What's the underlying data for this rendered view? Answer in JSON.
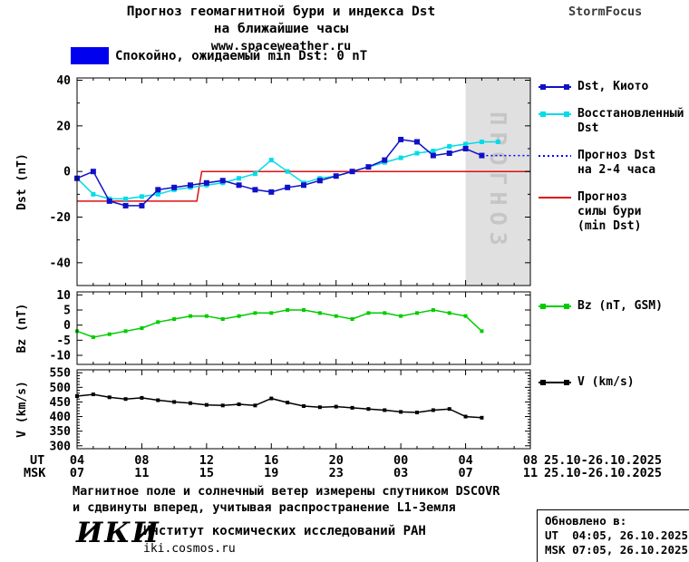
{
  "header": {
    "title_line1": "Прогноз геомагнитной бури и индекса Dst",
    "title_line2": "на ближайшие часы",
    "url": "www.spaceweather.ru",
    "brand": "StormFocus"
  },
  "status_legend": {
    "label": "Спокойно, ожидаемый min Dst: 0 nT"
  },
  "x_axis_footer": {
    "ut_label": "UT",
    "msk_label": "MSK",
    "ut_date": "25.10-26.10.2025",
    "msk_date": "25.10-26.10.2025"
  },
  "footer": {
    "note_line1": "Магнитное поле и солнечный ветер измерены спутником DSCOVR",
    "note_line2": "и сдвинуты вперед, учитывая распространение L1-Земля",
    "logo": "ИКИ",
    "institute": "Институт космических исследований РАН",
    "site": "iki.cosmos.ru",
    "updated_title": "Обновлено в:",
    "updated_ut": "UT  04:05, 26.10.2025",
    "updated_msk": "MSK 07:05, 26.10.2025"
  },
  "chart_data": {
    "type": "line",
    "title": "Прогноз геомагнитной бури и индекса Dst на ближайшие часы",
    "colors": {
      "quiet": "#0000ee",
      "forecast_region": "#e0e0e0",
      "forecast_label": "#c6c6c6",
      "axis": "#000000"
    },
    "x_axis": {
      "lim": [
        4,
        32
      ],
      "minor_step": 1,
      "major_ticks": [
        4,
        8,
        12,
        16,
        20,
        24,
        28,
        32
      ],
      "ut_labels": [
        "04",
        "08",
        "12",
        "16",
        "20",
        "00",
        "04",
        "08"
      ],
      "msk_labels": [
        "07",
        "11",
        "15",
        "19",
        "23",
        "03",
        "07",
        "11"
      ]
    },
    "panels": [
      {
        "id": "dst",
        "ylabel": "Dst (nT)",
        "ylim": [
          -50,
          41
        ],
        "yticks": [
          -40,
          -20,
          0,
          20,
          40
        ],
        "y_minor_step": 10,
        "forecast_region": {
          "x0": 28,
          "x1": 32,
          "label": "ПРОГНОЗ"
        },
        "series": [
          {
            "id": "storm_forecast",
            "name": "Прогноз силы бури (min Dst)",
            "legend_lines": [
              "Прогноз",
              "силы бури",
              "(min Dst)"
            ],
            "legend_order": 4,
            "color": "#dd1111",
            "style": "solid",
            "marker": "none",
            "x": [
              4,
              11.4,
              11.7,
              32
            ],
            "y": [
              -13,
              -13,
              0,
              0
            ]
          },
          {
            "id": "restored_dst",
            "name": "Восстановленный Dst",
            "legend_lines": [
              "Восстановленный",
              "Dst"
            ],
            "legend_order": 2,
            "color": "#00dce8",
            "style": "solid",
            "marker": "square",
            "marker_size": 5,
            "x": [
              4,
              5,
              6,
              7,
              8,
              9,
              10,
              11,
              12,
              13,
              14,
              15,
              16,
              17,
              18,
              19,
              20,
              21,
              22,
              23,
              24,
              25,
              26,
              27,
              28,
              29,
              30
            ],
            "y": [
              -3,
              -10,
              -12,
              -12,
              -11,
              -10,
              -8,
              -7,
              -6,
              -5,
              -3,
              -1,
              5,
              0,
              -5,
              -3,
              -2,
              0,
              2,
              4,
              6,
              8,
              9,
              11,
              12,
              13,
              13
            ]
          },
          {
            "id": "dst_kyoto",
            "name": "Dst, Киото",
            "legend_lines": [
              "Dst, Киото"
            ],
            "legend_order": 1,
            "color": "#1010c8",
            "style": "solid",
            "marker": "square",
            "marker_size": 6,
            "x": [
              4,
              5,
              6,
              7,
              8,
              9,
              10,
              11,
              12,
              13,
              14,
              15,
              16,
              17,
              18,
              19,
              20,
              21,
              22,
              23,
              24,
              25,
              26,
              27,
              28,
              29
            ],
            "y": [
              -3,
              0,
              -13,
              -15,
              -15,
              -8,
              -7,
              -6,
              -5,
              -4,
              -6,
              -8,
              -9,
              -7,
              -6,
              -4,
              -2,
              0,
              2,
              5,
              14,
              13,
              7,
              8,
              10,
              7
            ]
          },
          {
            "id": "forecast_dst",
            "name": "Прогноз Dst на 2-4 часа",
            "legend_lines": [
              "Прогноз Dst",
              "на 2-4 часа"
            ],
            "legend_order": 3,
            "color": "#0000ff",
            "style": "dotted",
            "marker": "none",
            "x": [
              29,
              32
            ],
            "y": [
              7,
              7
            ]
          }
        ]
      },
      {
        "id": "bz",
        "ylabel": "Bz (nT)",
        "ylim": [
          -13,
          11
        ],
        "yticks": [
          -10,
          -5,
          0,
          5,
          10
        ],
        "y_minor_step": null,
        "series": [
          {
            "id": "bz",
            "name": "Bz (nT, GSM)",
            "legend_lines": [
              "Bz (nT, GSM)"
            ],
            "legend_order": 1,
            "color": "#00cc00",
            "style": "solid",
            "marker": "square",
            "marker_size": 4,
            "x": [
              4,
              5,
              6,
              7,
              8,
              9,
              10,
              11,
              12,
              13,
              14,
              15,
              16,
              17,
              18,
              19,
              20,
              21,
              22,
              23,
              24,
              25,
              26,
              27,
              28,
              29
            ],
            "y": [
              -2,
              -4,
              -3,
              -2,
              -1,
              1,
              2,
              3,
              3,
              2,
              3,
              4,
              4,
              5,
              5,
              4,
              3,
              2,
              4,
              4,
              3,
              4,
              5,
              4,
              3,
              -2
            ]
          }
        ]
      },
      {
        "id": "v",
        "ylabel": "V (km/s)",
        "ylim": [
          290,
          560
        ],
        "yticks": [
          300,
          350,
          400,
          450,
          500,
          550
        ],
        "y_minor_step": 10,
        "series": [
          {
            "id": "v",
            "name": "V (km/s)",
            "legend_lines": [
              "V (km/s)"
            ],
            "legend_order": 1,
            "color": "#000000",
            "style": "solid",
            "marker": "square",
            "marker_size": 4,
            "x": [
              4,
              5,
              6,
              7,
              8,
              9,
              10,
              11,
              12,
              13,
              14,
              15,
              16,
              17,
              18,
              19,
              20,
              21,
              22,
              23,
              24,
              25,
              26,
              27,
              28,
              29
            ],
            "y": [
              470,
              476,
              466,
              460,
              464,
              456,
              450,
              446,
              440,
              438,
              442,
              438,
              462,
              448,
              436,
              432,
              434,
              430,
              426,
              422,
              416,
              414,
              422,
              426,
              400,
              396
            ]
          }
        ]
      }
    ]
  }
}
